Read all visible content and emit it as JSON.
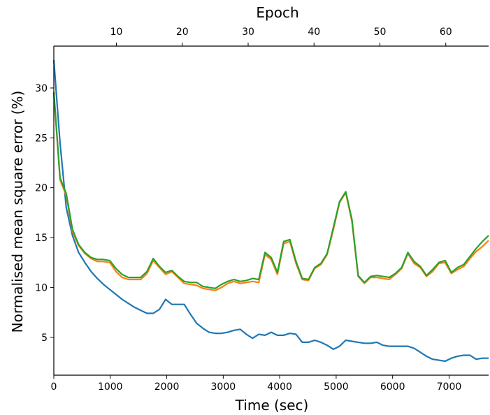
{
  "chart_data": {
    "type": "line",
    "xlabel": "Time (sec)",
    "ylabel": "Normalised mean square error (%)",
    "x2label": "Epoch",
    "xlim": [
      0,
      7700
    ],
    "ylim": [
      1.2,
      34.2
    ],
    "x2lim": [
      0.5,
      66.5
    ],
    "xticks": [
      0,
      1000,
      2000,
      3000,
      4000,
      5000,
      6000,
      7000
    ],
    "yticks": [
      5,
      10,
      15,
      20,
      25,
      30
    ],
    "x2ticks": [
      10,
      20,
      30,
      40,
      50,
      60
    ],
    "grid": false,
    "series": [
      {
        "color": "#1f77b4",
        "x": [
          0,
          110,
          220,
          330,
          440,
          550,
          660,
          770,
          880,
          990,
          1100,
          1210,
          1320,
          1430,
          1540,
          1650,
          1760,
          1870,
          1980,
          2090,
          2200,
          2310,
          2420,
          2530,
          2640,
          2750,
          2860,
          2970,
          3080,
          3190,
          3300,
          3410,
          3520,
          3630,
          3740,
          3850,
          3960,
          4070,
          4180,
          4290,
          4400,
          4510,
          4620,
          4730,
          4840,
          4950,
          5060,
          5170,
          5280,
          5390,
          5500,
          5610,
          5720,
          5830,
          5940,
          6050,
          6160,
          6270,
          6380,
          6490,
          6600,
          6710,
          6820,
          6930,
          7040,
          7150,
          7260,
          7370,
          7480,
          7590,
          7700
        ],
        "values": [
          32.8,
          24.5,
          18.0,
          15.2,
          13.5,
          12.5,
          11.6,
          10.9,
          10.3,
          9.8,
          9.3,
          8.8,
          8.4,
          8.0,
          7.7,
          7.4,
          7.4,
          7.8,
          8.8,
          8.3,
          8.3,
          8.3,
          7.3,
          6.4,
          5.9,
          5.5,
          5.4,
          5.4,
          5.5,
          5.7,
          5.8,
          5.3,
          4.9,
          5.3,
          5.2,
          5.5,
          5.2,
          5.2,
          5.4,
          5.3,
          4.5,
          4.5,
          4.7,
          4.5,
          4.2,
          3.8,
          4.1,
          4.7,
          4.6,
          4.5,
          4.4,
          4.4,
          4.5,
          4.2,
          4.1,
          4.1,
          4.1,
          4.1,
          3.9,
          3.5,
          3.1,
          2.8,
          2.7,
          2.6,
          2.9,
          3.1,
          3.2,
          3.2,
          2.8,
          2.9,
          2.9
        ]
      },
      {
        "color": "#ff7f0e",
        "x": [
          0,
          110,
          220,
          330,
          440,
          550,
          660,
          770,
          880,
          990,
          1100,
          1210,
          1320,
          1430,
          1540,
          1650,
          1760,
          1870,
          1980,
          2090,
          2200,
          2310,
          2420,
          2530,
          2640,
          2750,
          2860,
          2970,
          3080,
          3190,
          3300,
          3410,
          3520,
          3630,
          3740,
          3850,
          3960,
          4070,
          4180,
          4290,
          4400,
          4510,
          4620,
          4730,
          4840,
          4950,
          5060,
          5170,
          5280,
          5390,
          5500,
          5610,
          5720,
          5830,
          5940,
          6050,
          6160,
          6270,
          6380,
          6490,
          6600,
          6710,
          6820,
          6930,
          7040,
          7150,
          7260,
          7370,
          7480,
          7590,
          7700
        ],
        "values": [
          29.5,
          20.8,
          19.2,
          15.6,
          14.2,
          13.4,
          12.9,
          12.6,
          12.6,
          12.5,
          11.6,
          11.0,
          10.8,
          10.8,
          10.8,
          11.4,
          12.7,
          12.0,
          11.3,
          11.6,
          11.0,
          10.4,
          10.3,
          10.2,
          9.9,
          9.8,
          9.7,
          10.0,
          10.4,
          10.6,
          10.4,
          10.5,
          10.6,
          10.5,
          13.3,
          12.8,
          11.3,
          14.4,
          14.6,
          12.4,
          10.8,
          10.7,
          11.9,
          12.3,
          13.3,
          15.8,
          18.5,
          19.5,
          16.6,
          11.1,
          10.4,
          11.0,
          11.0,
          10.9,
          10.8,
          11.3,
          11.9,
          13.4,
          12.4,
          12.0,
          11.1,
          11.6,
          12.4,
          12.5,
          11.4,
          11.8,
          12.1,
          12.9,
          13.6,
          14.1,
          14.7
        ]
      },
      {
        "color": "#2ca02c",
        "x": [
          0,
          110,
          220,
          330,
          440,
          550,
          660,
          770,
          880,
          990,
          1100,
          1210,
          1320,
          1430,
          1540,
          1650,
          1760,
          1870,
          1980,
          2090,
          2200,
          2310,
          2420,
          2530,
          2640,
          2750,
          2860,
          2970,
          3080,
          3190,
          3300,
          3410,
          3520,
          3630,
          3740,
          3850,
          3960,
          4070,
          4180,
          4290,
          4400,
          4510,
          4620,
          4730,
          4840,
          4950,
          5060,
          5170,
          5280,
          5390,
          5500,
          5610,
          5720,
          5830,
          5940,
          6050,
          6160,
          6270,
          6380,
          6490,
          6600,
          6710,
          6820,
          6930,
          7040,
          7150,
          7260,
          7370,
          7480,
          7590,
          7700
        ],
        "values": [
          29.6,
          21.0,
          19.4,
          15.8,
          14.3,
          13.5,
          13.0,
          12.8,
          12.8,
          12.7,
          11.9,
          11.3,
          11.0,
          11.0,
          11.0,
          11.6,
          12.9,
          12.1,
          11.5,
          11.7,
          11.1,
          10.6,
          10.5,
          10.5,
          10.1,
          10.0,
          9.9,
          10.3,
          10.6,
          10.8,
          10.6,
          10.7,
          10.9,
          10.8,
          13.5,
          13.0,
          11.5,
          14.6,
          14.8,
          12.6,
          10.9,
          10.8,
          12.0,
          12.4,
          13.4,
          16.0,
          18.6,
          19.6,
          16.8,
          11.2,
          10.5,
          11.1,
          11.2,
          11.1,
          11.0,
          11.4,
          12.0,
          13.5,
          12.6,
          12.1,
          11.2,
          11.8,
          12.5,
          12.7,
          11.5,
          12.0,
          12.3,
          13.1,
          13.9,
          14.6,
          15.2
        ]
      }
    ]
  }
}
